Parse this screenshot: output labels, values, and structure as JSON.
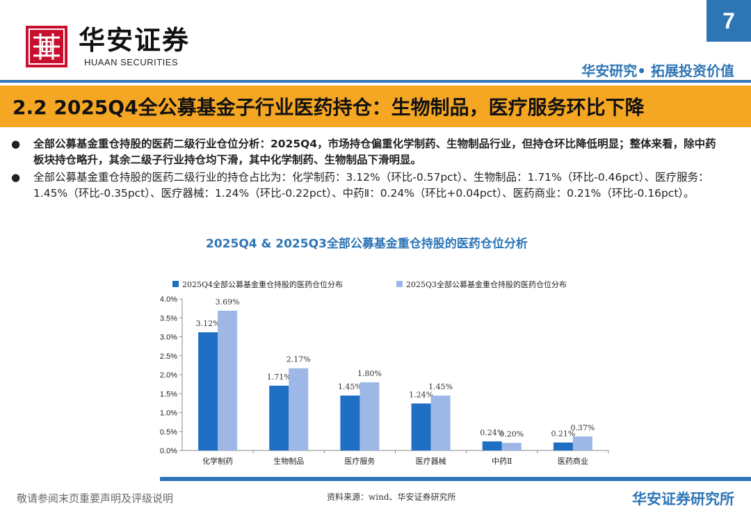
{
  "header": {
    "logo_cn": "华安证券",
    "logo_en": "HUAAN SECURITIES",
    "page_number": "7",
    "slogan": "华安研究• 拓展投资价值",
    "brand_color": "#2e75b6"
  },
  "section": {
    "title": "2.2 2025Q4全公募基金子行业医药持仓：生物制品，医疗服务环比下降",
    "accent_color": "#f5a623"
  },
  "bullets": [
    "全部公募基金重仓持股的医药二级行业仓位分析：2025Q4，市场持仓偏重化学制药、生物制品行业，但持仓环比降低明显；整体来看，除中药板块持仓略升，其余二级子行业持仓均下滑，其中化学制药、生物制品下滑明显。",
    "全部公募基金重仓持股的医药二级行业的持仓占比为：化学制药：3.12%（环比-0.57pct）、生物制品：1.71%（环比-0.46pct）、医疗服务：1.45%（环比-0.35pct）、医疗器械：1.24%（环比-0.22pct）、中药Ⅱ：0.24%（环比+0.04pct）、医药商业：0.21%（环比-0.16pct）。"
  ],
  "chart_data": {
    "type": "bar",
    "title": "2025Q4 & 2025Q3全部公募基金重仓持股的医药仓位分析",
    "categories": [
      "化学制药",
      "生物制品",
      "医疗服务",
      "医疗器械",
      "中药Ⅱ",
      "医药商业"
    ],
    "series": [
      {
        "name": "2025Q4全部公募基金重仓持股的医药仓位分布",
        "values": [
          3.12,
          1.71,
          1.45,
          1.24,
          0.24,
          0.21
        ],
        "labels": [
          "3.12%",
          "1.71%",
          "1.45%",
          "1.24%",
          "0.24%",
          "0.21%"
        ],
        "color": "#1f6fc5"
      },
      {
        "name": "2025Q3全部公募基金重仓持股的医药仓位分布",
        "values": [
          3.69,
          2.17,
          1.8,
          1.45,
          0.2,
          0.37
        ],
        "labels": [
          "3.69%",
          "2.17%",
          "1.80%",
          "1.45%",
          "0.20%",
          "0.37%"
        ],
        "color": "#9db8e6"
      }
    ],
    "ylim": [
      0,
      4.0
    ],
    "yticks": [
      "0.0%",
      "0.5%",
      "1.0%",
      "1.5%",
      "2.0%",
      "2.5%",
      "3.0%",
      "3.5%",
      "4.0%"
    ],
    "legend_position": "top",
    "grid": false
  },
  "footer": {
    "disclaimer": "敬请参阅末页重要声明及评级说明",
    "source": "资料来源：wind、华安证券研究所",
    "institute": "华安证券研究所"
  }
}
